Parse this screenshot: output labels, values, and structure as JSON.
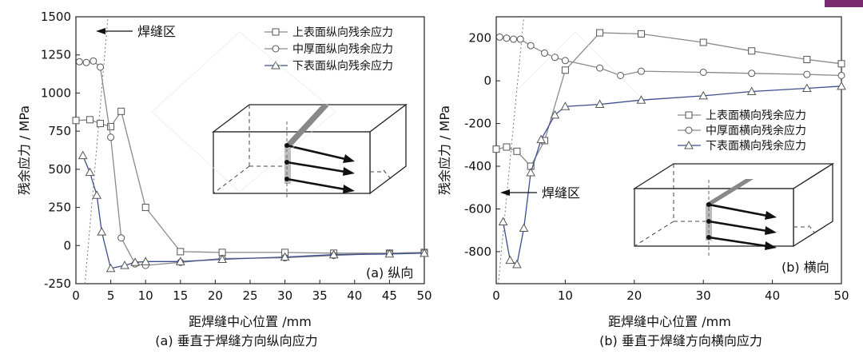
{
  "charts": [
    {
      "panel_label": "(a) 纵向",
      "caption": "(a) 垂直于焊缝方向纵向应力",
      "xlabel": "距焊缝中心位置 /mm",
      "ylabel": "残余应力 / MPa",
      "weld_zone_label": "焊缝区"
    },
    {
      "panel_label": "(b) 横向",
      "caption": "(b) 垂直于焊缝方向横向应力",
      "xlabel": "距焊缝中心位置 /mm",
      "ylabel": "残余应力 / MPa",
      "weld_zone_label": "焊缝区"
    }
  ],
  "chart_data": [
    {
      "type": "line",
      "title": "",
      "xlabel": "距焊缝中心位置 /mm",
      "ylabel": "残余应力 / MPa",
      "xlim": [
        0,
        50
      ],
      "ylim": [
        -250,
        1500
      ],
      "xticks": [
        0,
        5,
        10,
        15,
        20,
        25,
        30,
        35,
        40,
        45,
        50
      ],
      "yticks": [
        -250,
        0,
        250,
        500,
        750,
        1000,
        1250,
        1500
      ],
      "legend_position": "top-right",
      "series": [
        {
          "name": "上表面纵向残余应力",
          "marker": "square",
          "color": "#8a8a8a",
          "points": [
            [
              0,
              820
            ],
            [
              2,
              825
            ],
            [
              3.5,
              800
            ],
            [
              5,
              780
            ],
            [
              6.5,
              880
            ],
            [
              10,
              250
            ],
            [
              15,
              -40
            ],
            [
              21,
              -45
            ],
            [
              30,
              -45
            ],
            [
              37,
              -50
            ],
            [
              45,
              -50
            ],
            [
              50,
              -45
            ]
          ]
        },
        {
          "name": "中厚面纵向残余应力",
          "marker": "circle",
          "color": "#8a8a8a",
          "points": [
            [
              0.5,
              1205
            ],
            [
              1.5,
              1200
            ],
            [
              2.5,
              1210
            ],
            [
              3.5,
              1170
            ],
            [
              5,
              710
            ],
            [
              6.5,
              50
            ],
            [
              8.5,
              -120
            ],
            [
              10,
              -130
            ],
            [
              15,
              -110
            ],
            [
              21,
              -85
            ],
            [
              30,
              -80
            ],
            [
              37,
              -65
            ],
            [
              45,
              -50
            ],
            [
              50,
              -45
            ]
          ]
        },
        {
          "name": "下表面纵向残余应力",
          "marker": "triangle",
          "color": "#3d4e8c",
          "points": [
            [
              1,
              590
            ],
            [
              2,
              480
            ],
            [
              3,
              330
            ],
            [
              3.7,
              90
            ],
            [
              5,
              -150
            ],
            [
              7,
              -130
            ],
            [
              8.5,
              -110
            ],
            [
              10,
              -105
            ],
            [
              15,
              -105
            ],
            [
              21,
              -90
            ],
            [
              30,
              -75
            ],
            [
              37,
              -60
            ],
            [
              45,
              -55
            ],
            [
              50,
              -50
            ]
          ]
        }
      ]
    },
    {
      "type": "line",
      "title": "",
      "xlabel": "距焊缝中心位置 /mm",
      "ylabel": "残余应力 / MPa",
      "xlim": [
        0,
        50
      ],
      "ylim": [
        -950,
        300
      ],
      "xticks": [
        0,
        10,
        20,
        30,
        40,
        50
      ],
      "yticks": [
        -800,
        -600,
        -400,
        -200,
        0,
        200
      ],
      "legend_position": "middle-right",
      "series": [
        {
          "name": "上表面横向残余应力",
          "marker": "square",
          "color": "#8a8a8a",
          "points": [
            [
              0,
              -320
            ],
            [
              1.5,
              -310
            ],
            [
              3,
              -330
            ],
            [
              5,
              -400
            ],
            [
              7,
              -280
            ],
            [
              10,
              50
            ],
            [
              15,
              225
            ],
            [
              21,
              220
            ],
            [
              30,
              180
            ],
            [
              37,
              140
            ],
            [
              45,
              100
            ],
            [
              50,
              80
            ]
          ]
        },
        {
          "name": "中厚面横向残余应力",
          "marker": "circle",
          "color": "#8a8a8a",
          "points": [
            [
              0.5,
              205
            ],
            [
              1.5,
              200
            ],
            [
              2.5,
              195
            ],
            [
              3.5,
              195
            ],
            [
              5,
              165
            ],
            [
              7,
              130
            ],
            [
              8.5,
              110
            ],
            [
              10,
              95
            ],
            [
              15,
              60
            ],
            [
              18,
              25
            ],
            [
              21,
              45
            ],
            [
              30,
              40
            ],
            [
              37,
              35
            ],
            [
              45,
              30
            ],
            [
              50,
              25
            ]
          ]
        },
        {
          "name": "下表面横向残余应力",
          "marker": "triangle",
          "color": "#3d4e8c",
          "points": [
            [
              1,
              -660
            ],
            [
              2,
              -840
            ],
            [
              3,
              -860
            ],
            [
              4,
              -690
            ],
            [
              5,
              -430
            ],
            [
              6.5,
              -275
            ],
            [
              8.5,
              -160
            ],
            [
              10,
              -120
            ],
            [
              15,
              -110
            ],
            [
              21,
              -90
            ],
            [
              30,
              -70
            ],
            [
              37,
              -50
            ],
            [
              45,
              -35
            ],
            [
              50,
              -25
            ]
          ]
        }
      ]
    }
  ]
}
